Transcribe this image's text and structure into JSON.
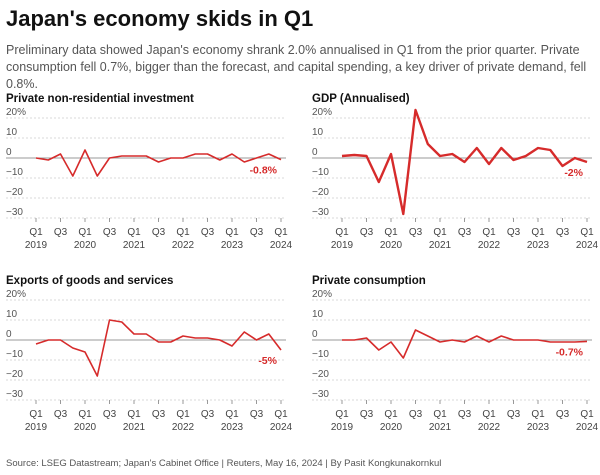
{
  "title": "Japan's economy skids in Q1",
  "subtitle": "Preliminary data showed Japan's economy shrank 2.0% annualised in Q1 from the prior quarter. Private consumption fell 0.7%, bigger than the forecast, and capital spending, a key driver of private demand, fell 0.8%.",
  "source": "Source: LSEG Datastream; Japan's Cabinet Office | Reuters, May 16, 2024 | By Pasit Kongkunakornkul",
  "colors": {
    "line": "#d62b2b",
    "grid": "#d9d9d9",
    "text": "#222222"
  },
  "chart_data": [
    {
      "type": "line",
      "title": "Private non-residential investment",
      "x": [
        "2019 Q1",
        "2019 Q2",
        "2019 Q3",
        "2019 Q4",
        "2020 Q1",
        "2020 Q2",
        "2020 Q3",
        "2020 Q4",
        "2021 Q1",
        "2021 Q2",
        "2021 Q3",
        "2021 Q4",
        "2022 Q1",
        "2022 Q2",
        "2022 Q3",
        "2022 Q4",
        "2023 Q1",
        "2023 Q2",
        "2023 Q3",
        "2023 Q4",
        "2024 Q1"
      ],
      "series": [
        {
          "values": [
            0,
            -1,
            2,
            -9,
            4,
            -9,
            0,
            1,
            1,
            1,
            -2,
            0,
            0,
            2,
            2,
            -1,
            2,
            -2,
            0,
            2,
            -0.8
          ]
        }
      ],
      "y_ticks": [
        20,
        10,
        0,
        -10,
        -20,
        -30
      ],
      "y_tick_labels": [
        "20%",
        "10",
        "0",
        "−10",
        "−20",
        "−30"
      ],
      "ylim": [
        -30,
        20
      ],
      "x_tick_labels": [
        [
          "Q1",
          "2019"
        ],
        [
          "Q3",
          ""
        ],
        [
          "Q1",
          "2020"
        ],
        [
          "Q3",
          ""
        ],
        [
          "Q1",
          "2021"
        ],
        [
          "Q3",
          ""
        ],
        [
          "Q1",
          "2022"
        ],
        [
          "Q3",
          ""
        ],
        [
          "Q1",
          "2023"
        ],
        [
          "Q3",
          ""
        ],
        [
          "Q1",
          "2024"
        ]
      ],
      "end_label": "-0.8%"
    },
    {
      "type": "line",
      "title": "GDP (Annualised)",
      "x": [
        "2019 Q1",
        "2019 Q2",
        "2019 Q3",
        "2019 Q4",
        "2020 Q1",
        "2020 Q2",
        "2020 Q3",
        "2020 Q4",
        "2021 Q1",
        "2021 Q2",
        "2021 Q3",
        "2021 Q4",
        "2022 Q1",
        "2022 Q2",
        "2022 Q3",
        "2022 Q4",
        "2023 Q1",
        "2023 Q2",
        "2023 Q3",
        "2023 Q4",
        "2024 Q1"
      ],
      "series": [
        {
          "values": [
            1,
            1.5,
            1,
            -12,
            2,
            -28,
            24,
            7,
            1,
            2,
            -2,
            5,
            -3,
            5,
            -1,
            1,
            5,
            4,
            -4,
            0,
            -2
          ]
        }
      ],
      "y_ticks": [
        20,
        10,
        0,
        -10,
        -20,
        -30
      ],
      "y_tick_labels": [
        "20%",
        "10",
        "0",
        "−10",
        "−20",
        "−30"
      ],
      "ylim": [
        -30,
        20
      ],
      "x_tick_labels": [
        [
          "Q1",
          "2019"
        ],
        [
          "Q3",
          ""
        ],
        [
          "Q1",
          "2020"
        ],
        [
          "Q3",
          ""
        ],
        [
          "Q1",
          "2021"
        ],
        [
          "Q3",
          ""
        ],
        [
          "Q1",
          "2022"
        ],
        [
          "Q3",
          ""
        ],
        [
          "Q1",
          "2023"
        ],
        [
          "Q3",
          ""
        ],
        [
          "Q1",
          "2024"
        ]
      ],
      "end_label": "-2%"
    },
    {
      "type": "line",
      "title": "Exports of goods and services",
      "x": [
        "2019 Q1",
        "2019 Q2",
        "2019 Q3",
        "2019 Q4",
        "2020 Q1",
        "2020 Q2",
        "2020 Q3",
        "2020 Q4",
        "2021 Q1",
        "2021 Q2",
        "2021 Q3",
        "2021 Q4",
        "2022 Q1",
        "2022 Q2",
        "2022 Q3",
        "2022 Q4",
        "2023 Q1",
        "2023 Q2",
        "2023 Q3",
        "2023 Q4",
        "2024 Q1"
      ],
      "series": [
        {
          "values": [
            -2,
            0,
            0,
            -4,
            -6,
            -18,
            10,
            9,
            3,
            3,
            -1,
            -1,
            2,
            1,
            1,
            0,
            -3,
            4,
            0,
            3,
            -5
          ]
        }
      ],
      "y_ticks": [
        20,
        10,
        0,
        -10,
        -20,
        -30
      ],
      "y_tick_labels": [
        "20%",
        "10",
        "0",
        "−10",
        "−20",
        "−30"
      ],
      "ylim": [
        -30,
        20
      ],
      "x_tick_labels": [
        [
          "Q1",
          "2019"
        ],
        [
          "Q3",
          ""
        ],
        [
          "Q1",
          "2020"
        ],
        [
          "Q3",
          ""
        ],
        [
          "Q1",
          "2021"
        ],
        [
          "Q3",
          ""
        ],
        [
          "Q1",
          "2022"
        ],
        [
          "Q3",
          ""
        ],
        [
          "Q1",
          "2023"
        ],
        [
          "Q3",
          ""
        ],
        [
          "Q1",
          "2024"
        ]
      ],
      "end_label": "-5%"
    },
    {
      "type": "line",
      "title": "Private consumption",
      "x": [
        "2019 Q1",
        "2019 Q2",
        "2019 Q3",
        "2019 Q4",
        "2020 Q1",
        "2020 Q2",
        "2020 Q3",
        "2020 Q4",
        "2021 Q1",
        "2021 Q2",
        "2021 Q3",
        "2021 Q4",
        "2022 Q1",
        "2022 Q2",
        "2022 Q3",
        "2022 Q4",
        "2023 Q1",
        "2023 Q2",
        "2023 Q3",
        "2023 Q4",
        "2024 Q1"
      ],
      "series": [
        {
          "values": [
            0,
            0,
            1,
            -5,
            -1,
            -9,
            5,
            2,
            -1,
            0,
            -1,
            2,
            -1,
            2,
            0,
            0,
            0,
            -1,
            -1,
            -1,
            -0.7
          ]
        }
      ],
      "y_ticks": [
        20,
        10,
        0,
        -10,
        -20,
        -30
      ],
      "y_tick_labels": [
        "20%",
        "10",
        "0",
        "−10",
        "−20",
        "−30"
      ],
      "ylim": [
        -30,
        20
      ],
      "x_tick_labels": [
        [
          "Q1",
          "2019"
        ],
        [
          "Q3",
          ""
        ],
        [
          "Q1",
          "2020"
        ],
        [
          "Q3",
          ""
        ],
        [
          "Q1",
          "2021"
        ],
        [
          "Q3",
          ""
        ],
        [
          "Q1",
          "2022"
        ],
        [
          "Q3",
          ""
        ],
        [
          "Q1",
          "2023"
        ],
        [
          "Q3",
          ""
        ],
        [
          "Q1",
          "2024"
        ]
      ],
      "end_label": "-0.7%"
    }
  ]
}
